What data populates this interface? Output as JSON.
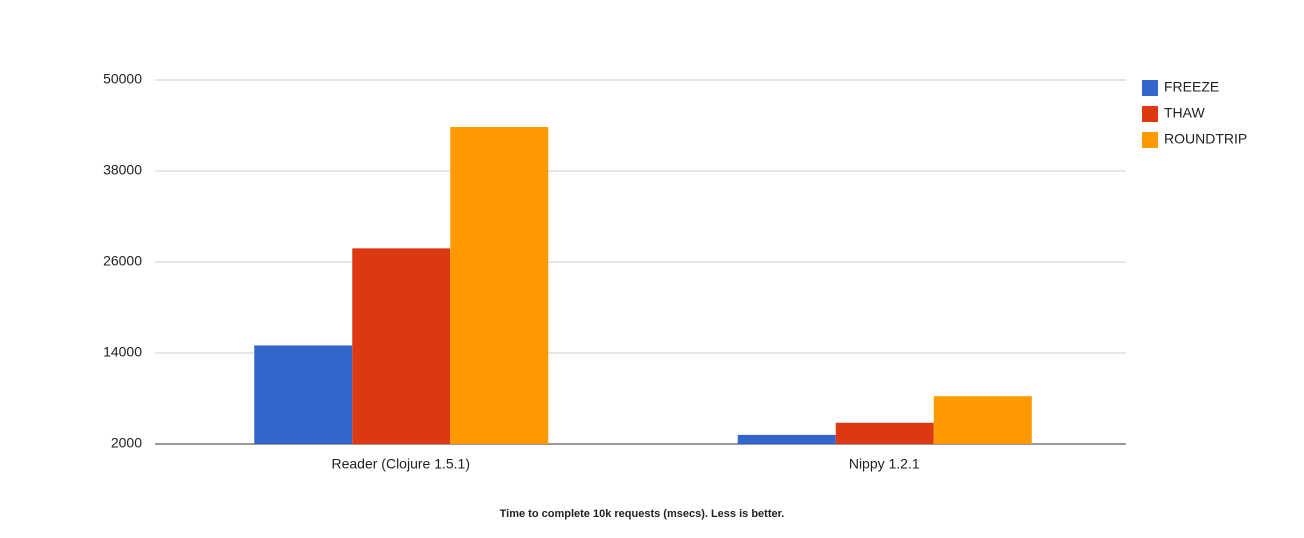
{
  "chart_data": {
    "type": "bar",
    "title": "Time to complete 10k requests (msecs). Less is better.",
    "categories": [
      "Reader (Clojure 1.5.1)",
      "Nippy 1.2.1"
    ],
    "series": [
      {
        "name": "FREEZE",
        "color": "#3366cc",
        "values": [
          15000,
          3200
        ]
      },
      {
        "name": "THAW",
        "color": "#dc3912",
        "values": [
          27800,
          4800
        ]
      },
      {
        "name": "ROUNDTRIP",
        "color": "#ff9900",
        "values": [
          43800,
          8300
        ]
      }
    ],
    "ylim": [
      2000,
      50000
    ],
    "yticks": [
      2000,
      14000,
      26000,
      38000,
      50000
    ],
    "grid": true,
    "legend": "right"
  }
}
